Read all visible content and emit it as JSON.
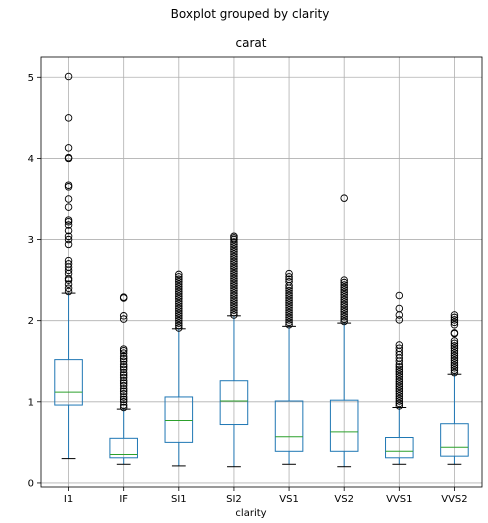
{
  "chart_data": {
    "type": "boxplot",
    "suptitle": "Boxplot grouped by clarity",
    "title": "carat",
    "xlabel": "clarity",
    "ylabel": "",
    "ylim": [
      -0.05,
      5.25
    ],
    "yticks": [
      0,
      1,
      2,
      3,
      4,
      5
    ],
    "grid": true,
    "colors": {
      "box": "#1f77b4",
      "median": "#2ca02c",
      "whisker": "#000000",
      "grid": "#b0b0b0",
      "flier_edge": "#000000"
    },
    "categories": [
      "I1",
      "IF",
      "SI1",
      "SI2",
      "VS1",
      "VS2",
      "VVS1",
      "VVS2"
    ],
    "boxes": [
      {
        "name": "I1",
        "whislo": 0.3,
        "q1": 0.96,
        "med": 1.12,
        "q3": 1.52,
        "whishi": 2.34,
        "fliers": [
          2.36,
          2.4,
          2.45,
          2.5,
          2.52,
          2.58,
          2.62,
          2.66,
          2.7,
          2.74,
          2.94,
          3.0,
          3.04,
          3.11,
          3.18,
          3.22,
          3.24,
          3.4,
          3.5,
          3.65,
          3.67,
          4.0,
          4.01,
          4.13,
          4.5,
          5.01
        ]
      },
      {
        "name": "IF",
        "whislo": 0.23,
        "q1": 0.31,
        "med": 0.35,
        "q3": 0.55,
        "whishi": 0.91,
        "fliers": [
          0.93,
          0.96,
          1.0,
          1.03,
          1.06,
          1.1,
          1.13,
          1.16,
          1.2,
          1.23,
          1.26,
          1.3,
          1.33,
          1.36,
          1.4,
          1.43,
          1.46,
          1.5,
          1.53,
          1.56,
          1.6,
          1.63,
          1.65,
          2.02,
          2.06,
          2.28,
          2.29
        ]
      },
      {
        "name": "SI1",
        "whislo": 0.21,
        "q1": 0.5,
        "med": 0.77,
        "q3": 1.06,
        "whishi": 1.9,
        "fliers": [
          1.91,
          1.94,
          1.97,
          2.0,
          2.03,
          2.06,
          2.09,
          2.12,
          2.15,
          2.18,
          2.21,
          2.24,
          2.27,
          2.3,
          2.33,
          2.36,
          2.39,
          2.42,
          2.45,
          2.48,
          2.51,
          2.54,
          2.57
        ]
      },
      {
        "name": "SI2",
        "whislo": 0.2,
        "q1": 0.72,
        "med": 1.01,
        "q3": 1.26,
        "whishi": 2.06,
        "fliers": [
          2.07,
          2.1,
          2.13,
          2.16,
          2.19,
          2.22,
          2.25,
          2.28,
          2.31,
          2.34,
          2.37,
          2.4,
          2.43,
          2.46,
          2.49,
          2.52,
          2.55,
          2.58,
          2.61,
          2.64,
          2.67,
          2.7,
          2.73,
          2.76,
          2.79,
          2.82,
          2.85,
          2.88,
          2.91,
          2.94,
          2.97,
          3.0,
          3.02,
          3.04
        ]
      },
      {
        "name": "VS1",
        "whislo": 0.23,
        "q1": 0.39,
        "med": 0.57,
        "q3": 1.01,
        "whishi": 1.93,
        "fliers": [
          1.95,
          1.98,
          2.01,
          2.04,
          2.07,
          2.1,
          2.13,
          2.16,
          2.19,
          2.22,
          2.25,
          2.28,
          2.31,
          2.34,
          2.37,
          2.4,
          2.43,
          2.48,
          2.51,
          2.54,
          2.58
        ]
      },
      {
        "name": "VS2",
        "whislo": 0.2,
        "q1": 0.39,
        "med": 0.63,
        "q3": 1.02,
        "whishi": 1.97,
        "fliers": [
          1.99,
          2.02,
          2.05,
          2.08,
          2.11,
          2.14,
          2.17,
          2.2,
          2.23,
          2.26,
          2.29,
          2.32,
          2.35,
          2.38,
          2.41,
          2.44,
          2.47,
          2.5,
          3.51
        ]
      },
      {
        "name": "VVS1",
        "whislo": 0.23,
        "q1": 0.31,
        "med": 0.39,
        "q3": 0.56,
        "whishi": 0.93,
        "fliers": [
          0.95,
          0.98,
          1.01,
          1.04,
          1.07,
          1.1,
          1.13,
          1.16,
          1.19,
          1.22,
          1.25,
          1.28,
          1.31,
          1.34,
          1.37,
          1.4,
          1.43,
          1.46,
          1.5,
          1.54,
          1.58,
          1.62,
          1.66,
          1.7,
          2.01,
          2.07,
          2.15,
          2.31
        ]
      },
      {
        "name": "VVS2",
        "whislo": 0.23,
        "q1": 0.33,
        "med": 0.44,
        "q3": 0.73,
        "whishi": 1.34,
        "fliers": [
          1.36,
          1.39,
          1.42,
          1.45,
          1.48,
          1.51,
          1.54,
          1.57,
          1.6,
          1.63,
          1.66,
          1.69,
          1.72,
          1.75,
          1.84,
          1.85,
          1.95,
          1.98,
          2.01,
          2.04,
          2.07
        ]
      }
    ]
  }
}
